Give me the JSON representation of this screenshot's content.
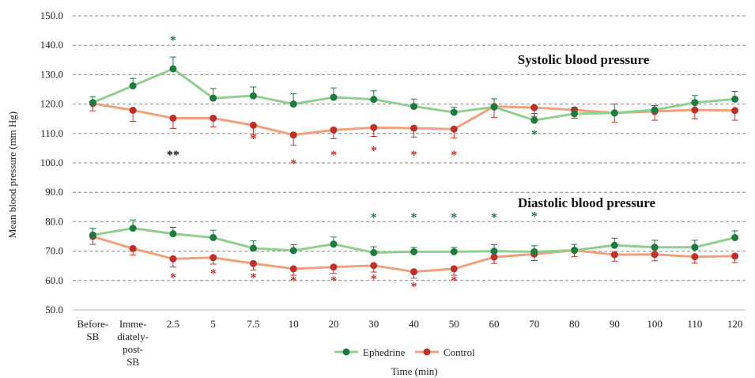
{
  "chart_data": {
    "type": "line",
    "ylabel": "Mean blood pressure (mm Hg)",
    "xlabel": "Time (min)",
    "ylim": [
      50,
      150
    ],
    "yticks": [
      "50.0",
      "60.0",
      "70.0",
      "80.0",
      "90.0",
      "100.0",
      "110.0",
      "120.0",
      "130.0",
      "140.0",
      "150.0"
    ],
    "grid": "horizontal dashed",
    "legend": "bottom-center",
    "categories": [
      [
        "Before-",
        "SB"
      ],
      [
        "Imme-",
        "diately-",
        "post-",
        "SB"
      ],
      [
        "2.5"
      ],
      [
        "5"
      ],
      [
        "7.5"
      ],
      [
        "10"
      ],
      [
        "20"
      ],
      [
        "30"
      ],
      [
        "40"
      ],
      [
        "50"
      ],
      [
        "60"
      ],
      [
        "70"
      ],
      [
        "80"
      ],
      [
        "90"
      ],
      [
        "100"
      ],
      [
        "110"
      ],
      [
        "120"
      ]
    ],
    "panel_titles": [
      "Systolic blood pressure",
      "Diastolic blood pressure"
    ],
    "legend_labels": [
      "Ephedrine",
      "Control"
    ],
    "colors": {
      "ephedrine_line": "#8fcf8f",
      "ephedrine_marker": "#1f7a3f",
      "control_line": "#f2a07c",
      "control_marker": "#c0302b",
      "grid": "#8a8a8a"
    },
    "series": [
      {
        "name": "Ephedrine",
        "panel": "systolic",
        "values": [
          120.5,
          126.2,
          132.0,
          122.0,
          122.8,
          120.0,
          122.3,
          121.6,
          119.2,
          117.2,
          119.0,
          114.5,
          116.7,
          117.0,
          118.0,
          120.5,
          121.7
        ],
        "errors": [
          2.0,
          2.5,
          4.0,
          3.3,
          3.0,
          3.5,
          3.2,
          2.9,
          2.5,
          1.7,
          2.8,
          2.3,
          2.2,
          3.0,
          1.5,
          2.4,
          2.6
        ]
      },
      {
        "name": "Control",
        "panel": "systolic",
        "values": [
          120.2,
          117.9,
          115.2,
          115.2,
          112.8,
          109.5,
          111.2,
          112.0,
          111.8,
          111.5,
          119.2,
          118.8,
          118.0,
          117.0,
          117.5,
          118.0,
          117.8
        ],
        "errors": [
          2.5,
          3.8,
          3.5,
          3.0,
          3.3,
          3.5,
          3.0,
          3.0,
          3.0,
          3.0,
          3.8,
          3.0,
          2.8,
          3.2,
          3.0,
          3.0,
          3.3
        ]
      },
      {
        "name": "Ephedrine",
        "panel": "diastolic",
        "values": [
          75.5,
          77.8,
          75.9,
          74.6,
          71.0,
          70.2,
          72.4,
          69.5,
          69.8,
          69.8,
          70.0,
          69.8,
          70.3,
          72.0,
          71.3,
          71.3,
          74.6
        ],
        "errors": [
          2.3,
          2.8,
          2.2,
          2.5,
          2.5,
          2.0,
          2.4,
          2.0,
          1.5,
          1.5,
          2.2,
          2.0,
          2.0,
          2.4,
          2.4,
          2.4,
          2.3
        ]
      },
      {
        "name": "Control",
        "panel": "diastolic",
        "values": [
          75.0,
          70.9,
          67.4,
          67.8,
          65.8,
          64.0,
          64.6,
          65.1,
          63.0,
          64.0,
          68.0,
          69.0,
          70.3,
          68.8,
          68.9,
          68.1,
          68.3
        ],
        "errors": [
          2.7,
          2.2,
          2.8,
          2.2,
          2.2,
          2.2,
          2.2,
          2.2,
          2.2,
          2.2,
          2.2,
          2.2,
          2.2,
          2.2,
          2.2,
          2.2,
          2.2
        ]
      }
    ],
    "annotations": [
      {
        "text": "*",
        "x": 2,
        "y": 142.5,
        "color": "#1f7a3f"
      },
      {
        "text": "*",
        "x": 11,
        "y": 110.5,
        "color": "#1f7a3f"
      },
      {
        "text": "**",
        "x": 2,
        "y": 103.5,
        "color": "#111111"
      },
      {
        "text": "*",
        "x": 4,
        "y": 109.0,
        "color": "#c0302b"
      },
      {
        "text": "*",
        "x": 5,
        "y": 100.5,
        "color": "#c0302b"
      },
      {
        "text": "*",
        "x": 6,
        "y": 103.5,
        "color": "#c0302b"
      },
      {
        "text": "*",
        "x": 7,
        "y": 105.0,
        "color": "#c0302b"
      },
      {
        "text": "*",
        "x": 8,
        "y": 103.5,
        "color": "#c0302b"
      },
      {
        "text": "*",
        "x": 9,
        "y": 103.5,
        "color": "#c0302b"
      },
      {
        "text": "*",
        "x": 7,
        "y": 82.3,
        "color": "#1f7a3f"
      },
      {
        "text": "*",
        "x": 8,
        "y": 82.3,
        "color": "#1f7a3f"
      },
      {
        "text": "*",
        "x": 9,
        "y": 82.3,
        "color": "#1f7a3f"
      },
      {
        "text": "*",
        "x": 10,
        "y": 82.3,
        "color": "#1f7a3f"
      },
      {
        "text": "*",
        "x": 11,
        "y": 82.6,
        "color": "#1f7a3f"
      },
      {
        "text": "*",
        "x": 2,
        "y": 61.8,
        "color": "#c0302b"
      },
      {
        "text": "*",
        "x": 3,
        "y": 63.2,
        "color": "#c0302b"
      },
      {
        "text": "*",
        "x": 4,
        "y": 61.8,
        "color": "#c0302b"
      },
      {
        "text": "*",
        "x": 5,
        "y": 60.8,
        "color": "#c0302b"
      },
      {
        "text": "*",
        "x": 6,
        "y": 60.8,
        "color": "#c0302b"
      },
      {
        "text": "*",
        "x": 7,
        "y": 61.3,
        "color": "#c0302b"
      },
      {
        "text": "*",
        "x": 8,
        "y": 58.8,
        "color": "#c0302b"
      },
      {
        "text": "*",
        "x": 9,
        "y": 60.8,
        "color": "#c0302b"
      }
    ]
  }
}
